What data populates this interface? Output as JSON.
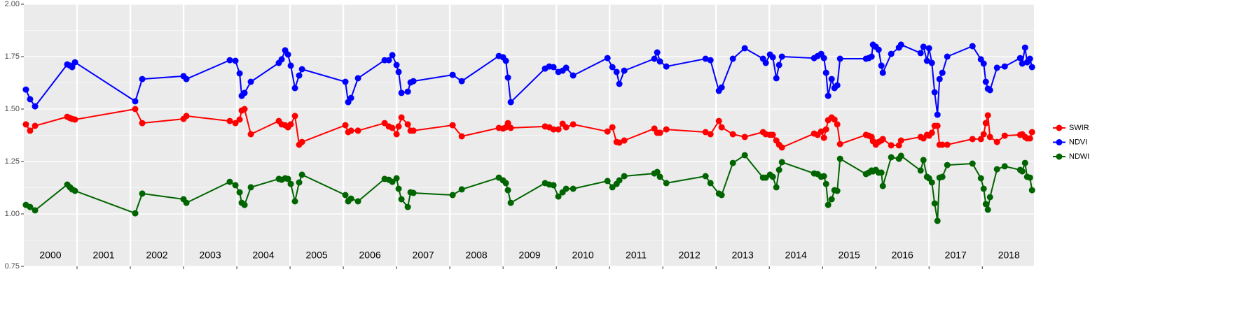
{
  "chart_data": {
    "type": "line",
    "x": [
      2000.039,
      2000.118,
      2000.211,
      2000.816,
      2000.868,
      2000.908,
      2000.961,
      2002.092,
      2002.224,
      2003.0,
      2003.053,
      2003.868,
      2003.974,
      2004.053,
      2004.092,
      2004.145,
      2004.263,
      2004.789,
      2004.842,
      2004.908,
      2004.961,
      2005.013,
      2005.092,
      2005.171,
      2005.224,
      2006.039,
      2006.092,
      2006.145,
      2006.276,
      2006.776,
      2006.855,
      2006.921,
      2007.0,
      2007.039,
      2007.092,
      2007.211,
      2007.263,
      2007.316,
      2008.053,
      2008.224,
      2008.921,
      2009.0,
      2009.053,
      2009.092,
      2009.145,
      2009.789,
      2009.868,
      2009.947,
      2010.039,
      2010.118,
      2010.184,
      2010.316,
      2010.961,
      2011.053,
      2011.132,
      2011.184,
      2011.276,
      2011.842,
      2011.895,
      2011.947,
      2012.066,
      2012.803,
      2012.895,
      2013.053,
      2013.105,
      2013.316,
      2013.539,
      2013.882,
      2013.934,
      2014.013,
      2014.066,
      2014.132,
      2014.184,
      2014.237,
      2014.842,
      2014.908,
      2014.974,
      2015.026,
      2015.066,
      2015.105,
      2015.171,
      2015.224,
      2015.276,
      2015.329,
      2015.816,
      2015.868,
      2015.921,
      2015.947,
      2016.0,
      2016.053,
      2016.105,
      2016.132,
      2016.289,
      2016.434,
      2016.474,
      2016.842,
      2016.895,
      2016.961,
      2017.0,
      2017.053,
      2017.105,
      2017.158,
      2017.197,
      2017.25,
      2017.342,
      2017.816,
      2017.974,
      2018.026,
      2018.066,
      2018.105,
      2018.145,
      2018.276,
      2018.421,
      2018.711,
      2018.75,
      2018.803,
      2018.842,
      2018.895,
      2018.934
    ],
    "series": [
      {
        "name": "SWIR",
        "color": "#ff0000",
        "values": [
          1.427,
          1.397,
          1.42,
          1.463,
          1.457,
          1.453,
          1.45,
          1.5,
          1.433,
          1.453,
          1.467,
          1.443,
          1.433,
          1.45,
          1.493,
          1.5,
          1.38,
          1.443,
          1.427,
          1.423,
          1.413,
          1.427,
          1.467,
          1.33,
          1.343,
          1.423,
          1.39,
          1.397,
          1.397,
          1.433,
          1.417,
          1.41,
          1.38,
          1.417,
          1.46,
          1.427,
          1.397,
          1.397,
          1.423,
          1.37,
          1.41,
          1.407,
          1.413,
          1.433,
          1.41,
          1.417,
          1.413,
          1.403,
          1.403,
          1.43,
          1.413,
          1.427,
          1.393,
          1.413,
          1.343,
          1.34,
          1.35,
          1.407,
          1.387,
          1.387,
          1.403,
          1.39,
          1.38,
          1.443,
          1.413,
          1.38,
          1.367,
          1.39,
          1.38,
          1.377,
          1.377,
          1.35,
          1.33,
          1.317,
          1.383,
          1.377,
          1.393,
          1.363,
          1.403,
          1.447,
          1.46,
          1.45,
          1.427,
          1.333,
          1.377,
          1.373,
          1.367,
          1.347,
          1.33,
          1.343,
          1.35,
          1.357,
          1.327,
          1.327,
          1.35,
          1.367,
          1.36,
          1.377,
          1.373,
          1.387,
          1.42,
          1.42,
          1.33,
          1.33,
          1.33,
          1.357,
          1.357,
          1.38,
          1.433,
          1.47,
          1.367,
          1.343,
          1.373,
          1.377,
          1.38,
          1.367,
          1.36,
          1.36,
          1.39
        ]
      },
      {
        "name": "NDVI",
        "color": "#0000ff",
        "values": [
          1.593,
          1.547,
          1.513,
          1.713,
          1.707,
          1.7,
          1.723,
          1.537,
          1.643,
          1.657,
          1.643,
          1.733,
          1.73,
          1.67,
          1.563,
          1.577,
          1.63,
          1.72,
          1.737,
          1.78,
          1.76,
          1.707,
          1.6,
          1.66,
          1.69,
          1.63,
          1.533,
          1.553,
          1.647,
          1.733,
          1.733,
          1.757,
          1.71,
          1.677,
          1.577,
          1.583,
          1.627,
          1.633,
          1.663,
          1.633,
          1.753,
          1.747,
          1.73,
          1.65,
          1.533,
          1.693,
          1.703,
          1.7,
          1.677,
          1.683,
          1.697,
          1.66,
          1.743,
          1.7,
          1.677,
          1.62,
          1.683,
          1.74,
          1.77,
          1.727,
          1.703,
          1.74,
          1.733,
          1.587,
          1.603,
          1.74,
          1.79,
          1.74,
          1.72,
          1.76,
          1.747,
          1.647,
          1.71,
          1.75,
          1.743,
          1.753,
          1.763,
          1.743,
          1.673,
          1.563,
          1.643,
          1.6,
          1.613,
          1.74,
          1.74,
          1.743,
          1.75,
          1.807,
          1.797,
          1.783,
          1.707,
          1.673,
          1.763,
          1.793,
          1.807,
          1.767,
          1.797,
          1.73,
          1.79,
          1.72,
          1.58,
          1.473,
          1.643,
          1.673,
          1.75,
          1.8,
          1.737,
          1.717,
          1.63,
          1.597,
          1.59,
          1.697,
          1.703,
          1.743,
          1.717,
          1.793,
          1.723,
          1.74,
          1.7
        ]
      },
      {
        "name": "NDWI",
        "color": "#006400",
        "values": [
          1.043,
          1.033,
          1.017,
          1.14,
          1.127,
          1.117,
          1.11,
          1.003,
          1.097,
          1.07,
          1.053,
          1.153,
          1.137,
          1.103,
          1.053,
          1.043,
          1.127,
          1.167,
          1.163,
          1.17,
          1.167,
          1.143,
          1.06,
          1.15,
          1.187,
          1.09,
          1.06,
          1.073,
          1.06,
          1.167,
          1.163,
          1.153,
          1.17,
          1.12,
          1.07,
          1.033,
          1.103,
          1.1,
          1.09,
          1.117,
          1.173,
          1.16,
          1.147,
          1.113,
          1.053,
          1.147,
          1.14,
          1.137,
          1.083,
          1.103,
          1.12,
          1.12,
          1.157,
          1.127,
          1.143,
          1.16,
          1.18,
          1.193,
          1.2,
          1.177,
          1.147,
          1.18,
          1.147,
          1.097,
          1.09,
          1.243,
          1.28,
          1.173,
          1.173,
          1.187,
          1.177,
          1.127,
          1.21,
          1.247,
          1.193,
          1.19,
          1.177,
          1.18,
          1.143,
          1.043,
          1.07,
          1.113,
          1.11,
          1.263,
          1.19,
          1.197,
          1.207,
          1.203,
          1.21,
          1.197,
          1.197,
          1.133,
          1.27,
          1.263,
          1.277,
          1.207,
          1.257,
          1.177,
          1.17,
          1.15,
          1.05,
          0.967,
          1.173,
          1.177,
          1.233,
          1.24,
          1.17,
          1.12,
          1.047,
          1.02,
          1.08,
          1.213,
          1.227,
          1.21,
          1.203,
          1.243,
          1.177,
          1.173,
          1.113
        ]
      }
    ],
    "xlim": [
      2000,
      2018.97
    ],
    "xticks": [
      2001,
      2002,
      2003,
      2004,
      2005,
      2006,
      2007,
      2008,
      2009,
      2010,
      2011,
      2012,
      2013,
      2014,
      2015,
      2016,
      2017,
      2018
    ],
    "year_labels": [
      2000,
      2001,
      2002,
      2003,
      2004,
      2005,
      2006,
      2007,
      2008,
      2009,
      2010,
      2011,
      2012,
      2013,
      2014,
      2015,
      2016,
      2017,
      2018
    ],
    "ylim": [
      0.75,
      2.0
    ],
    "yticks": [
      0.75,
      {
        "value": 1,
        "label": "1.00"
      },
      1.25,
      {
        "value": 1.5,
        "label": "1.50"
      },
      1.75,
      {
        "value": 2,
        "label": "2.00"
      }
    ],
    "grid": true,
    "legend": "right"
  }
}
